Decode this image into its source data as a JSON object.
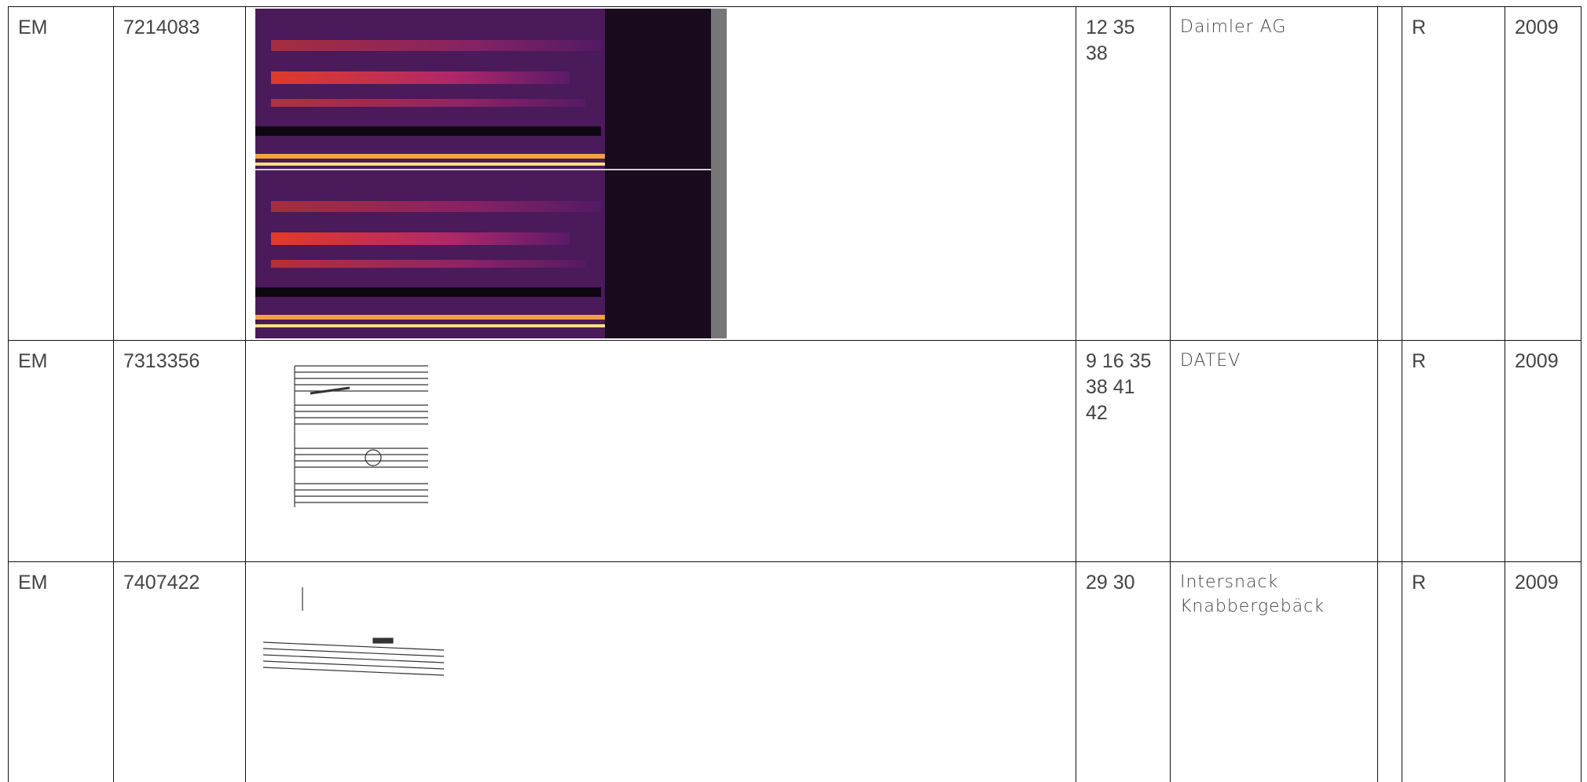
{
  "table": {
    "rows": [
      {
        "kind": "EM",
        "number": "7214083",
        "classes": "12 35 38",
        "owner": "Daimler AG",
        "status": "R",
        "year": "2009"
      },
      {
        "kind": "EM",
        "number": "7313356",
        "classes": "9 16 35 38 41 42",
        "owner": "DATEV",
        "status": "R",
        "year": "2009"
      },
      {
        "kind": "EM",
        "number": "7407422",
        "classes": "29 30",
        "owner": "Intersnack Knabbergebäck",
        "status": "R",
        "year": "2009"
      }
    ]
  }
}
